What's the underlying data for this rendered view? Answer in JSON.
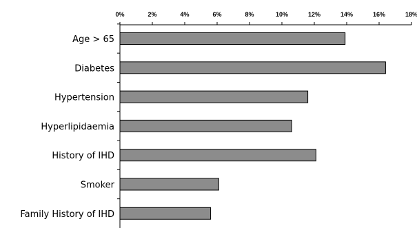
{
  "chart_data": {
    "type": "bar",
    "orientation": "horizontal",
    "categories": [
      "Age > 65",
      "Diabetes",
      "Hypertension",
      "Hyperlipidaemia",
      "History of IHD",
      "Smoker",
      "Family History of IHD"
    ],
    "values": [
      13.9,
      16.4,
      11.6,
      10.6,
      12.1,
      6.1,
      5.6
    ],
    "xlim": [
      0,
      18
    ],
    "x_ticks": [
      0,
      2,
      4,
      6,
      8,
      10,
      12,
      14,
      16,
      18
    ],
    "x_tick_labels": [
      "0%",
      "2%",
      "4%",
      "6%",
      "8%",
      "10%",
      "12%",
      "14%",
      "16%",
      "18%"
    ],
    "x_axis_position": "top",
    "grid": false,
    "bar_color": "#8c8c8c",
    "bar_edge_color": "#000000"
  }
}
